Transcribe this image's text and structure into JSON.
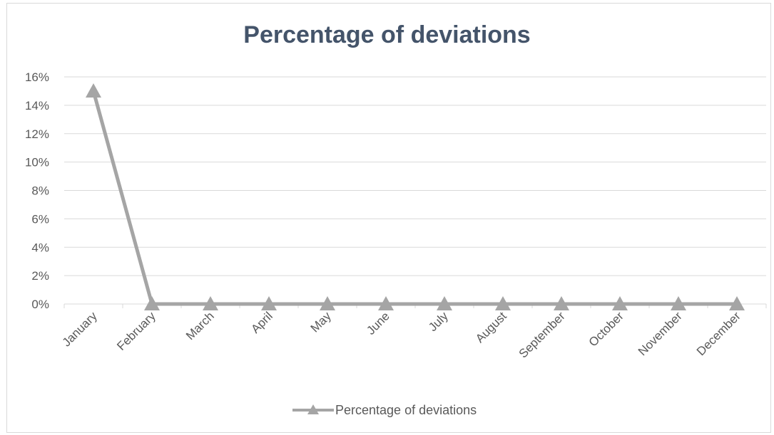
{
  "chart_data": {
    "type": "line",
    "title": "Percentage of deviations",
    "categories": [
      "January",
      "February",
      "March",
      "April",
      "May",
      "June",
      "July",
      "August",
      "September",
      "October",
      "November",
      "December"
    ],
    "series": [
      {
        "name": "Percentage of deviations",
        "values": [
          15,
          0,
          0,
          0,
          0,
          0,
          0,
          0,
          0,
          0,
          0,
          0
        ],
        "color": "#a5a5a5",
        "marker": "triangle"
      }
    ],
    "y_ticks": [
      "0%",
      "2%",
      "4%",
      "6%",
      "8%",
      "10%",
      "12%",
      "14%",
      "16%"
    ],
    "ylim": [
      0,
      16
    ],
    "grid": true,
    "legend_position": "bottom"
  }
}
